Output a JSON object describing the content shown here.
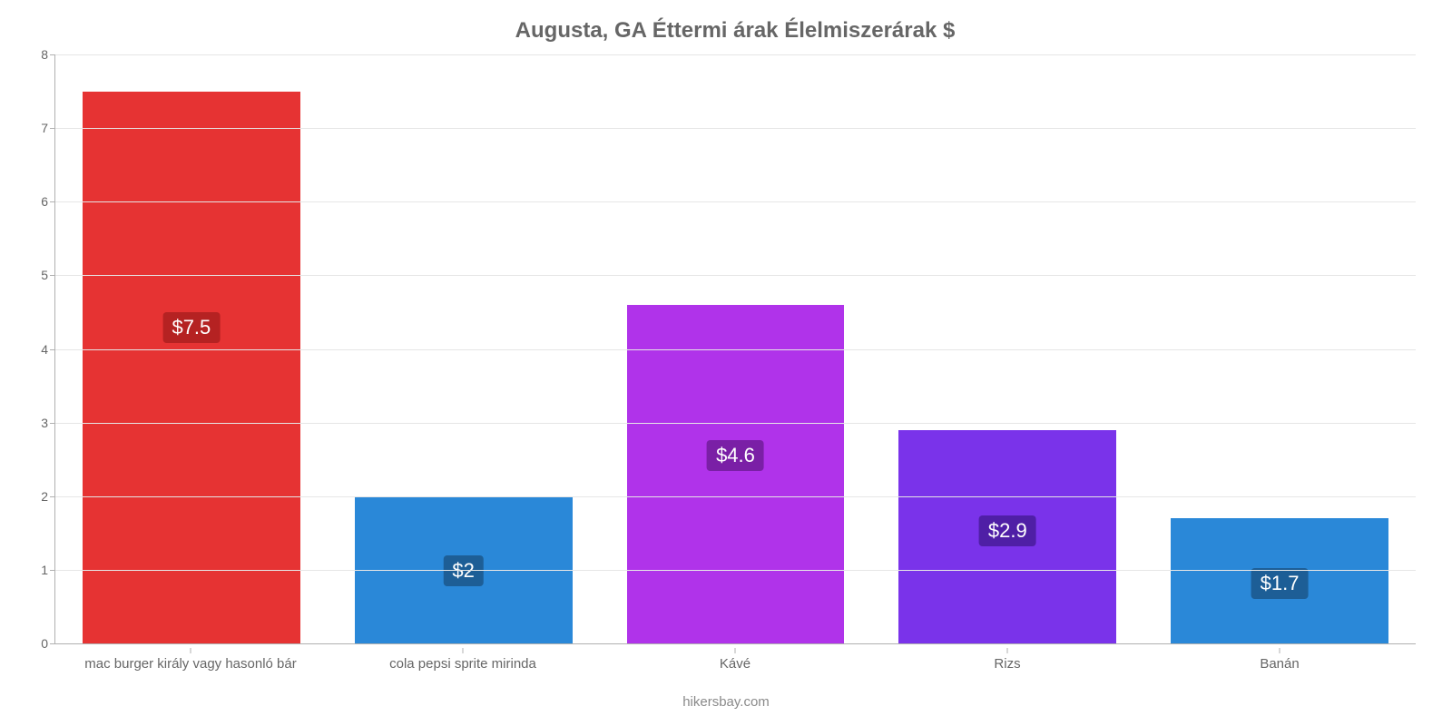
{
  "chart": {
    "type": "bar",
    "title": "Augusta, GA Éttermi árak Élelmiszerárak $",
    "title_fontsize": 24,
    "title_color": "#666666",
    "attribution": "hikersbay.com",
    "attribution_color": "#8a8a8a",
    "background_color": "#ffffff",
    "grid_color": "#e6e6e6",
    "axis_color": "#b0b0b0",
    "tick_label_color": "#666666",
    "ylim": [
      0,
      8
    ],
    "ytick_step": 1,
    "bar_width_pct": 16,
    "value_badge_fontsize": 22,
    "value_badge_text_color": "#ffffff",
    "categories": [
      "mac burger király vagy hasonló bár",
      "cola pepsi sprite mirinda",
      "Kávé",
      "Rizs",
      "Banán"
    ],
    "values": [
      7.5,
      2.0,
      4.6,
      2.9,
      1.7
    ],
    "value_labels": [
      "$7.5",
      "$2",
      "$4.6",
      "$2.9",
      "$1.7"
    ],
    "bar_colors": [
      "#e63333",
      "#2a88d8",
      "#b033ea",
      "#7a33ea",
      "#2a88d8"
    ],
    "badge_colors": [
      "#b52222",
      "#1d5e96",
      "#7a1fa6",
      "#4f1fa6",
      "#1d5e96"
    ],
    "x_label_fontsize": 15
  }
}
